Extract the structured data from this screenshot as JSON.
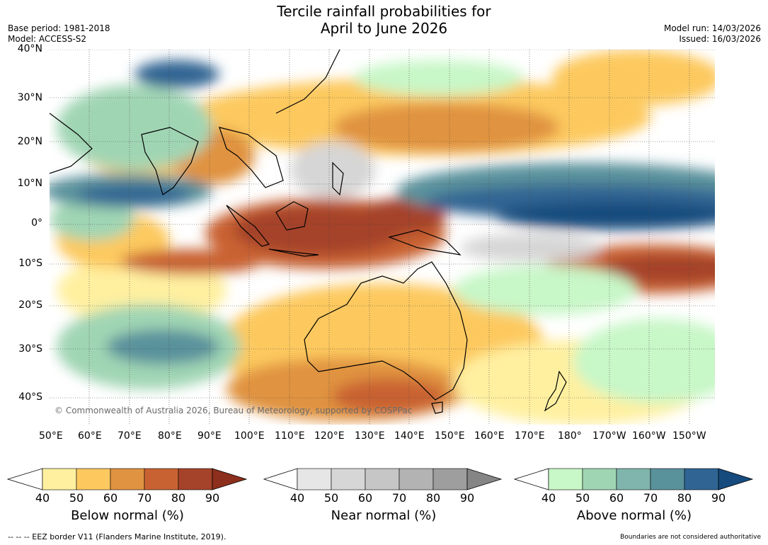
{
  "header": {
    "title_line1": "Tercile rainfall probabilities for",
    "title_line2": "April to June 2026",
    "base_period": "Base period: 1981-2018",
    "model": "Model: ACCESS-S2",
    "model_run": "Model run: 14/03/2026",
    "issued": "Issued: 16/03/2026"
  },
  "map": {
    "copyright": "© Commonwealth of Australia 2026, Bureau of Meteorology, supported by COSPPac",
    "lon_ticks": [
      "50°E",
      "60°E",
      "70°E",
      "80°E",
      "90°E",
      "100°E",
      "110°E",
      "120°E",
      "130°E",
      "140°E",
      "150°E",
      "160°E",
      "170°E",
      "180°",
      "170°W",
      "160°W",
      "150°W"
    ],
    "lat_ticks": [
      "40°N",
      "30°N",
      "20°N",
      "10°N",
      "0°",
      "10°S",
      "20°S",
      "30°S",
      "40°S"
    ]
  },
  "colorbars": [
    {
      "label": "Below normal (%)",
      "ticks": [
        "40",
        "50",
        "60",
        "70",
        "80",
        "90"
      ],
      "colors": [
        "#fff0a0",
        "#fdc95f",
        "#e09341",
        "#c96232",
        "#a5432a",
        "#8c2f1c"
      ]
    },
    {
      "label": "Near normal (%)",
      "ticks": [
        "40",
        "50",
        "60",
        "70",
        "80",
        "90"
      ],
      "colors": [
        "#e6e6e6",
        "#d6d6d6",
        "#c6c6c6",
        "#b3b3b3",
        "#9e9e9e",
        "#858585"
      ]
    },
    {
      "label": "Above normal (%)",
      "ticks": [
        "40",
        "50",
        "60",
        "70",
        "80",
        "90"
      ],
      "colors": [
        "#c8f7c8",
        "#a0d5b4",
        "#7fb5ac",
        "#5a929c",
        "#306593",
        "#164b7e"
      ]
    }
  ],
  "footer": {
    "eez_note": "--  --  -- EEZ border V11 (Flanders Marine Institute, 2019).",
    "boundary_note": "Boundaries are not considered authoritative"
  }
}
